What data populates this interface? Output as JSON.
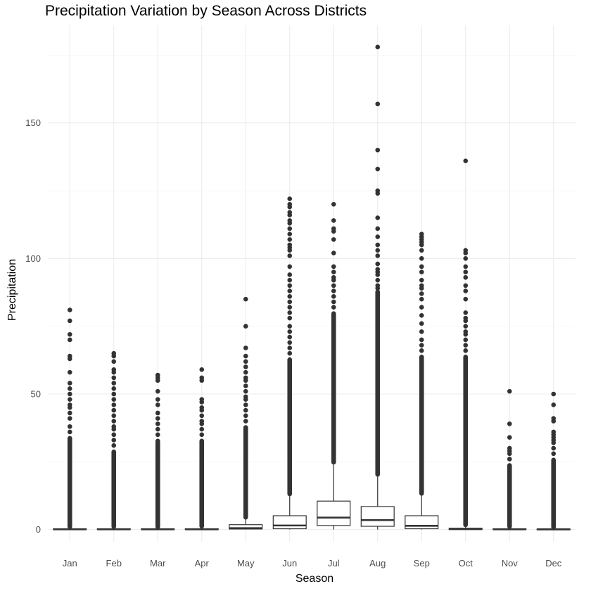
{
  "chart_data": {
    "type": "box",
    "title": "Precipitation Variation by Season Across Districts",
    "xlabel": "Season",
    "ylabel": "Precipitation",
    "categories": [
      "Jan",
      "Feb",
      "Mar",
      "Apr",
      "May",
      "Jun",
      "Jul",
      "Aug",
      "Sep",
      "Oct",
      "Nov",
      "Dec"
    ],
    "ylim": [
      -4.5,
      186
    ],
    "y_ticks": [
      0,
      50,
      100,
      150
    ],
    "grid": true,
    "legend": "none",
    "colors": {
      "box_stroke": "#333333",
      "outlier": "#333333",
      "grid_major": "#ebebeb",
      "grid_minor": "#f5f5f5"
    },
    "boxes": [
      {
        "category": "Jan",
        "q1": 0,
        "median": 0.1,
        "q3": 0.3,
        "whisker_low": 0,
        "whisker_high": 0.6,
        "outlier_range": [
          0.7,
          34
        ],
        "outliers": [
          36,
          38,
          41,
          43,
          45,
          46,
          48,
          50,
          52,
          54,
          58,
          63,
          64,
          70,
          72,
          77,
          81
        ]
      },
      {
        "category": "Feb",
        "q1": 0,
        "median": 0.1,
        "q3": 0.3,
        "whisker_low": 0,
        "whisker_high": 0.7,
        "outlier_range": [
          0.8,
          29
        ],
        "outliers": [
          31,
          33,
          35,
          37,
          38,
          40,
          42,
          44,
          46,
          48,
          50,
          52,
          54,
          56,
          58,
          59,
          62,
          64,
          65
        ]
      },
      {
        "category": "Mar",
        "q1": 0,
        "median": 0.1,
        "q3": 0.3,
        "whisker_low": 0,
        "whisker_high": 0.6,
        "outlier_range": [
          0.7,
          33
        ],
        "outliers": [
          35,
          37,
          39,
          41,
          43,
          46,
          48,
          51,
          55,
          56,
          57
        ]
      },
      {
        "category": "Apr",
        "q1": 0,
        "median": 0.1,
        "q3": 0.3,
        "whisker_low": 0,
        "whisker_high": 0.8,
        "outlier_range": [
          0.9,
          33
        ],
        "outliers": [
          35,
          37,
          39,
          40,
          42,
          44,
          45,
          47,
          48,
          55,
          56,
          59
        ]
      },
      {
        "category": "May",
        "q1": 0.2,
        "median": 0.5,
        "q3": 1.8,
        "whisker_low": 0,
        "whisker_high": 4,
        "outlier_range": [
          4.2,
          38
        ],
        "outliers": [
          40,
          42,
          44,
          46,
          48,
          49,
          51,
          53,
          55,
          56,
          58,
          60,
          62,
          64,
          67,
          75,
          85
        ]
      },
      {
        "category": "Jun",
        "q1": 0.3,
        "median": 1.5,
        "q3": 5.1,
        "whisker_low": 0,
        "whisker_high": 12.5,
        "outlier_range": [
          12.8,
          63
        ],
        "outliers": [
          65,
          67,
          69,
          71,
          73,
          75,
          78,
          80,
          82,
          84,
          86,
          88,
          90,
          92,
          94,
          97,
          101,
          103,
          104,
          105,
          107,
          109,
          111,
          113,
          114,
          116,
          117,
          119,
          120,
          122
        ]
      },
      {
        "category": "Jul",
        "q1": 1.5,
        "median": 4.4,
        "q3": 10.5,
        "whisker_low": 0,
        "whisker_high": 24,
        "outlier_range": [
          24.5,
          80
        ],
        "outliers": [
          82,
          84,
          86,
          88,
          90,
          92,
          93,
          95,
          97,
          102,
          107,
          110,
          111,
          114,
          120
        ]
      },
      {
        "category": "Aug",
        "q1": 1.2,
        "median": 3.5,
        "q3": 8.5,
        "whisker_low": 0,
        "whisker_high": 19.5,
        "outlier_range": [
          20,
          88
        ],
        "outliers": [
          89,
          90,
          92,
          94,
          95,
          96,
          98,
          101,
          103,
          105,
          108,
          111,
          115,
          124,
          125,
          133,
          140,
          157,
          178
        ]
      },
      {
        "category": "Sep",
        "q1": 0.3,
        "median": 1.4,
        "q3": 5.1,
        "whisker_low": 0,
        "whisker_high": 12.5,
        "outlier_range": [
          13,
          64
        ],
        "outliers": [
          66,
          68,
          70,
          73,
          76,
          79,
          82,
          85,
          87,
          89,
          90,
          92,
          95,
          97,
          100,
          103,
          105,
          106,
          107,
          108,
          109
        ]
      },
      {
        "category": "Oct",
        "q1": 0,
        "median": 0.2,
        "q3": 0.5,
        "whisker_low": 0,
        "whisker_high": 1.2,
        "outlier_range": [
          1.4,
          64
        ],
        "outliers": [
          66,
          68,
          70,
          72,
          73,
          75,
          77,
          78,
          80,
          85,
          88,
          90,
          93,
          95,
          97,
          100,
          102,
          103,
          136
        ]
      },
      {
        "category": "Nov",
        "q1": 0,
        "median": 0.1,
        "q3": 0.3,
        "whisker_low": 0,
        "whisker_high": 0.7,
        "outlier_range": [
          0.8,
          24
        ],
        "outliers": [
          26,
          28,
          29,
          30,
          34,
          39,
          51
        ]
      },
      {
        "category": "Dec",
        "q1": 0,
        "median": 0.1,
        "q3": 0.2,
        "whisker_low": 0,
        "whisker_high": 0.5,
        "outlier_range": [
          0.6,
          26
        ],
        "outliers": [
          28,
          30,
          32,
          33,
          34,
          35,
          36,
          40,
          41,
          46,
          50
        ]
      }
    ]
  }
}
